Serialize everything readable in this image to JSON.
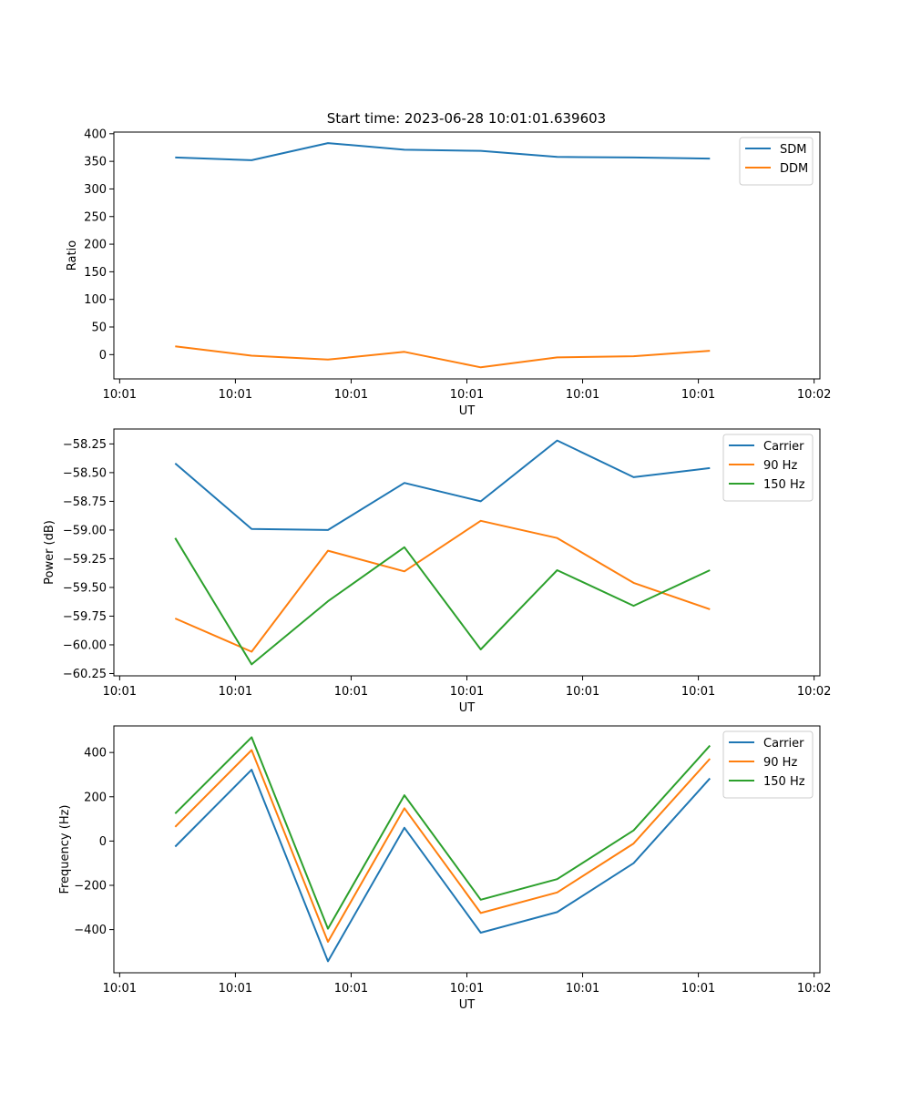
{
  "title": "Start time: 2023-06-28 10:01:01.639603",
  "chart_data": [
    {
      "type": "line",
      "xlabel": "UT",
      "ylabel": "Ratio",
      "xticks": [
        "10:01",
        "10:01",
        "10:01",
        "10:01",
        "10:01",
        "10:01",
        "10:02"
      ],
      "xrange": [
        -0.05,
        6.05
      ],
      "ylim": [
        -44,
        403
      ],
      "yticks": [
        0,
        50,
        100,
        150,
        200,
        250,
        300,
        350,
        400
      ],
      "ytick_labels": [
        "0",
        "50",
        "100",
        "150",
        "200",
        "250",
        "300",
        "350",
        "400"
      ],
      "x": [
        0.48,
        1.14,
        1.8,
        2.46,
        3.12,
        3.78,
        4.44,
        5.1
      ],
      "series": [
        {
          "name": "SDM",
          "color": "#1f77b4",
          "values": [
            357,
            352,
            383,
            371,
            369,
            358,
            357,
            355
          ]
        },
        {
          "name": "DDM",
          "color": "#ff7f0e",
          "values": [
            15,
            -2,
            -9,
            5,
            -23,
            -5,
            -3,
            7
          ]
        }
      ],
      "legend": "top-right"
    },
    {
      "type": "line",
      "xlabel": "UT",
      "ylabel": "Power (dB)",
      "xticks": [
        "10:01",
        "10:01",
        "10:01",
        "10:01",
        "10:01",
        "10:01",
        "10:02"
      ],
      "xrange": [
        -0.05,
        6.05
      ],
      "ylim": [
        -60.27,
        -58.12
      ],
      "yticks": [
        -60.25,
        -60.0,
        -59.75,
        -59.5,
        -59.25,
        -59.0,
        -58.75,
        -58.5,
        -58.25
      ],
      "ytick_labels": [
        "−60.25",
        "−60.00",
        "−59.75",
        "−59.50",
        "−59.25",
        "−59.00",
        "−58.75",
        "−58.50",
        "−58.25"
      ],
      "x": [
        0.48,
        1.14,
        1.8,
        2.46,
        3.12,
        3.78,
        4.44,
        5.1
      ],
      "series": [
        {
          "name": "Carrier",
          "color": "#1f77b4",
          "values": [
            -58.42,
            -58.99,
            -59.0,
            -58.59,
            -58.75,
            -58.22,
            -58.54,
            -58.46
          ]
        },
        {
          "name": "90 Hz",
          "color": "#ff7f0e",
          "values": [
            -59.77,
            -60.06,
            -59.18,
            -59.36,
            -58.92,
            -59.07,
            -59.46,
            -59.69
          ]
        },
        {
          "name": "150 Hz",
          "color": "#2ca02c",
          "values": [
            -59.07,
            -60.17,
            -59.62,
            -59.15,
            -60.04,
            -59.35,
            -59.66,
            -59.35
          ]
        }
      ],
      "legend": "top-right"
    },
    {
      "type": "line",
      "xlabel": "UT",
      "ylabel": "Frequency (Hz)",
      "xticks": [
        "10:01",
        "10:01",
        "10:01",
        "10:01",
        "10:01",
        "10:01",
        "10:02"
      ],
      "xrange": [
        -0.05,
        6.05
      ],
      "ylim": [
        -595,
        520
      ],
      "yticks": [
        -400,
        -200,
        0,
        200,
        400
      ],
      "ytick_labels": [
        "−400",
        "−200",
        "0",
        "200",
        "400"
      ],
      "x": [
        0.48,
        1.14,
        1.8,
        2.46,
        3.12,
        3.78,
        4.44,
        5.1
      ],
      "series": [
        {
          "name": "Carrier",
          "color": "#1f77b4",
          "values": [
            -25,
            322,
            -543,
            60,
            -414,
            -321,
            -100,
            283
          ]
        },
        {
          "name": "90 Hz",
          "color": "#ff7f0e",
          "values": [
            64,
            411,
            -455,
            148,
            -325,
            -232,
            -11,
            372
          ]
        },
        {
          "name": "150 Hz",
          "color": "#2ca02c",
          "values": [
            124,
            469,
            -396,
            207,
            -265,
            -172,
            48,
            431
          ]
        }
      ],
      "legend": "top-right"
    }
  ]
}
